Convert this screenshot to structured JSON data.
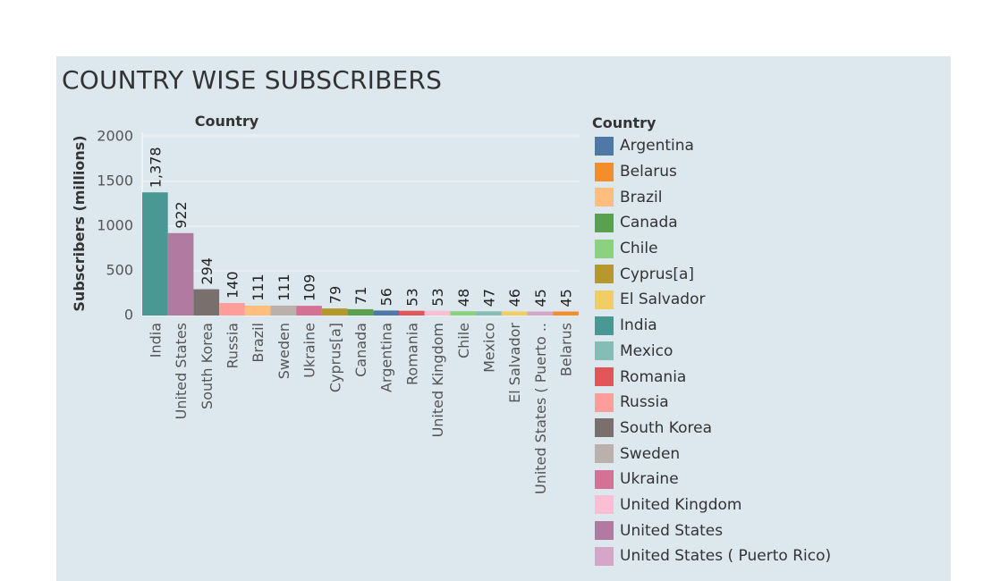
{
  "title": "COUNTRY WISE SUBSCRIBERS",
  "colors": {
    "panel_bg": "#dde8ee",
    "gridline": "#f2f6f8",
    "text": "#333333",
    "label": "#555555"
  },
  "chart_data": {
    "type": "bar",
    "title": "Country",
    "xlabel": "",
    "ylabel": "Subscribers (millions)",
    "ylim": [
      0,
      2000
    ],
    "yticks": [
      0,
      500,
      1000,
      1500,
      2000
    ],
    "grid": true,
    "legend_position": "right",
    "categories": [
      "India",
      "United States",
      "South Korea",
      "Russia",
      "Brazil",
      "Sweden",
      "Ukraine",
      "Cyprus[a]",
      "Canada",
      "Argentina",
      "Romania",
      "United Kingdom",
      "Chile",
      "Mexico",
      "El Salvador",
      "United States ( Puerto ..",
      "Belarus"
    ],
    "values": [
      1378,
      922,
      294,
      140,
      111,
      111,
      109,
      79,
      71,
      56,
      53,
      53,
      48,
      47,
      46,
      45,
      45
    ],
    "value_labels": [
      "1,378",
      "922",
      "294",
      "140",
      "111",
      "111",
      "109",
      "79",
      "71",
      "56",
      "53",
      "53",
      "48",
      "47",
      "46",
      "45",
      "45"
    ],
    "bar_colors": [
      "#499894",
      "#b07aa1",
      "#79706e",
      "#ff9d9a",
      "#ffbe7d",
      "#bab0ac",
      "#d37295",
      "#b6992d",
      "#59a14f",
      "#4e79a7",
      "#e15759",
      "#fabfd2",
      "#8cd17d",
      "#86bcb6",
      "#f1ce63",
      "#d4a6c8",
      "#f28e2b"
    ]
  },
  "legend": {
    "title": "Country",
    "items": [
      {
        "label": "Argentina",
        "color": "#4e79a7"
      },
      {
        "label": "Belarus",
        "color": "#f28e2b"
      },
      {
        "label": "Brazil",
        "color": "#ffbe7d"
      },
      {
        "label": "Canada",
        "color": "#59a14f"
      },
      {
        "label": "Chile",
        "color": "#8cd17d"
      },
      {
        "label": "Cyprus[a]",
        "color": "#b6992d"
      },
      {
        "label": "El Salvador",
        "color": "#f1ce63"
      },
      {
        "label": "India",
        "color": "#499894"
      },
      {
        "label": "Mexico",
        "color": "#86bcb6"
      },
      {
        "label": "Romania",
        "color": "#e15759"
      },
      {
        "label": "Russia",
        "color": "#ff9d9a"
      },
      {
        "label": "South Korea",
        "color": "#79706e"
      },
      {
        "label": "Sweden",
        "color": "#bab0ac"
      },
      {
        "label": "Ukraine",
        "color": "#d37295"
      },
      {
        "label": "United Kingdom",
        "color": "#fabfd2"
      },
      {
        "label": "United States",
        "color": "#b07aa1"
      },
      {
        "label": "United States ( Puerto Rico)",
        "color": "#d4a6c8"
      }
    ]
  }
}
